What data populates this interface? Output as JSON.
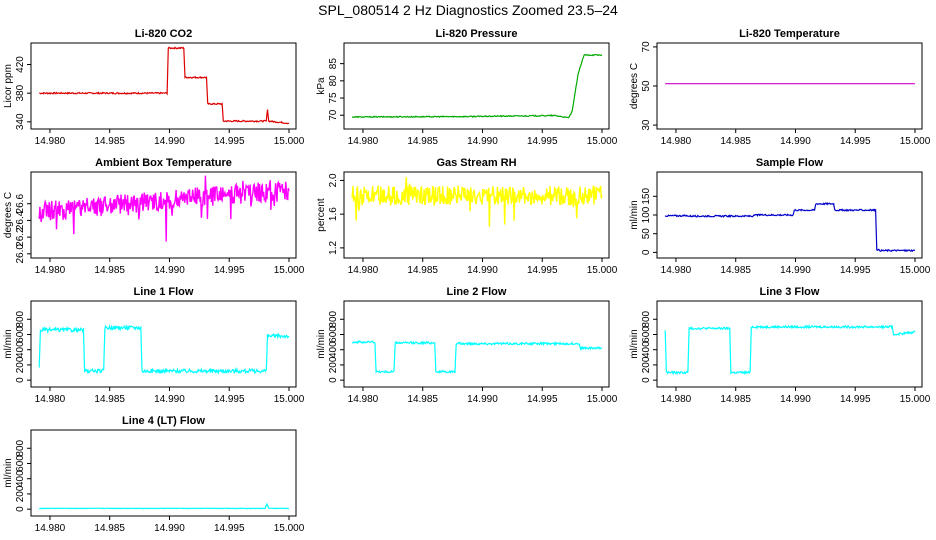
{
  "figure": {
    "title": "SPL_080514  2 Hz Diagnostics Zoomed 23.5–24"
  },
  "chart_data": [
    {
      "type": "line",
      "title": "Li-820 CO2",
      "xlabel": "",
      "ylabel": "Licor ppm",
      "color": "#dd0000",
      "noise": 1,
      "xlim": [
        14.979,
        15.0
      ],
      "ylim": [
        330,
        450
      ],
      "yticks": [
        "340",
        "380",
        "420"
      ],
      "ytick_values": [
        340,
        380,
        420
      ],
      "xticks": [
        "14.980",
        "14.985",
        "14.990",
        "14.995",
        "15.000"
      ],
      "xtick_values": [
        14.98,
        14.985,
        14.99,
        14.995,
        15.0
      ],
      "series": [
        {
          "x": [
            14.9791,
            14.9898,
            14.9899,
            14.9912,
            14.9913,
            14.9922,
            14.9923,
            14.9931,
            14.9932,
            14.9944,
            14.9945,
            14.9981,
            14.9982,
            14.9983,
            15.0
          ],
          "values": [
            380,
            380,
            443,
            443,
            402,
            402,
            402,
            402,
            365,
            365,
            341,
            341,
            358,
            341,
            338
          ]
        }
      ]
    },
    {
      "type": "line",
      "title": "Li-820 Pressure",
      "xlabel": "",
      "ylabel": "kPa",
      "color": "#00aa00",
      "noise": 0.15,
      "xlim": [
        14.979,
        15.0
      ],
      "ylim": [
        66,
        91
      ],
      "yticks": [
        "70",
        "75",
        "80",
        "85"
      ],
      "ytick_values": [
        70,
        75,
        80,
        85
      ],
      "xticks": [
        "14.980",
        "14.985",
        "14.990",
        "14.995",
        "15.000"
      ],
      "xtick_values": [
        14.98,
        14.985,
        14.99,
        14.995,
        15.0
      ],
      "series": [
        {
          "x": [
            14.9791,
            14.988,
            14.996,
            14.9961,
            14.9971,
            14.9972,
            14.9975,
            14.998,
            14.9985,
            15.0
          ],
          "values": [
            69.5,
            69.6,
            69.9,
            69.9,
            69.3,
            69.3,
            71,
            82,
            87.5,
            87.5
          ]
        }
      ]
    },
    {
      "type": "line",
      "title": "Li-820 Temperature",
      "xlabel": "",
      "ylabel": "degrees C",
      "color": "#cc00cc",
      "noise": 0,
      "xlim": [
        14.979,
        15.0
      ],
      "ylim": [
        28,
        72
      ],
      "yticks": [
        "30",
        "50",
        "70"
      ],
      "ytick_values": [
        30,
        50,
        70
      ],
      "xticks": [
        "14.980",
        "14.985",
        "14.990",
        "14.995",
        "15.000"
      ],
      "xtick_values": [
        14.98,
        14.985,
        14.99,
        14.995,
        15.0
      ],
      "series": [
        {
          "x": [
            14.9791,
            15.0
          ],
          "values": [
            51.2,
            51.2
          ]
        }
      ]
    },
    {
      "type": "line",
      "title": "Ambient Box Temperature",
      "xlabel": "",
      "ylabel": "degrees C",
      "color": "#ff00ff",
      "noise": 0.12,
      "spiky": true,
      "xlim": [
        14.979,
        15.0
      ],
      "ylim": [
        25.95,
        26.98
      ],
      "yticks": [
        "26.0",
        "26.2",
        "26.4",
        "26.6"
      ],
      "ytick_values": [
        26.0,
        26.2,
        26.4,
        26.6
      ],
      "xticks": [
        "14.980",
        "14.985",
        "14.990",
        "14.995",
        "15.000"
      ],
      "xtick_values": [
        14.98,
        14.985,
        14.99,
        14.995,
        15.0
      ],
      "series": [
        {
          "x": [
            14.9791,
            14.985,
            14.992,
            15.0
          ],
          "values": [
            26.5,
            26.58,
            26.68,
            26.75
          ]
        }
      ]
    },
    {
      "type": "line",
      "title": "Gas Stream RH",
      "xlabel": "",
      "ylabel": "percent",
      "color": "#ffff00",
      "noise": 0.12,
      "spiky": true,
      "xlim": [
        14.979,
        15.0
      ],
      "ylim": [
        1.08,
        2.1
      ],
      "yticks": [
        "1.2",
        "1.6",
        "2.0"
      ],
      "ytick_values": [
        1.2,
        1.6,
        2.0
      ],
      "xticks": [
        "14.980",
        "14.985",
        "14.990",
        "14.995",
        "15.000"
      ],
      "xtick_values": [
        14.98,
        14.985,
        14.99,
        14.995,
        15.0
      ],
      "series": [
        {
          "x": [
            14.9791,
            15.0
          ],
          "values": [
            1.82,
            1.82
          ]
        }
      ]
    },
    {
      "type": "line",
      "title": "Sample Flow",
      "xlabel": "",
      "ylabel": "ml/min",
      "color": "#0000cc",
      "noise": 2,
      "xlim": [
        14.979,
        15.0
      ],
      "ylim": [
        -15,
        215
      ],
      "yticks": [
        "0",
        "50",
        "100",
        "150"
      ],
      "ytick_values": [
        0,
        50,
        100,
        150
      ],
      "xticks": [
        "14.980",
        "14.985",
        "14.990",
        "14.995",
        "15.000"
      ],
      "xtick_values": [
        14.98,
        14.985,
        14.99,
        14.995,
        15.0
      ],
      "series": [
        {
          "x": [
            14.9791,
            14.981,
            14.9811,
            14.9865,
            14.9866,
            14.9898,
            14.9899,
            14.9916,
            14.9917,
            14.9932,
            14.9933,
            14.9967,
            14.9968,
            14.9971,
            15.0
          ],
          "values": [
            98,
            98,
            97,
            97,
            100,
            100,
            113,
            113,
            130,
            130,
            113,
            113,
            8,
            5,
            5
          ]
        }
      ]
    },
    {
      "type": "line",
      "title": "Line 1 Flow",
      "xlabel": "",
      "ylabel": "ml/min",
      "color": "#00ffff",
      "noise": 25,
      "xlim": [
        14.979,
        15.0
      ],
      "ylim": [
        -90,
        1040
      ],
      "yticks": [
        "0",
        "200",
        "400",
        "600",
        "800"
      ],
      "ytick_values": [
        0,
        200,
        400,
        600,
        800
      ],
      "xticks": [
        "14.980",
        "14.985",
        "14.990",
        "14.995",
        "15.000"
      ],
      "xtick_values": [
        14.98,
        14.985,
        14.99,
        14.995,
        15.0
      ],
      "series": [
        {
          "x": [
            14.9791,
            14.9792,
            14.9828,
            14.9829,
            14.9845,
            14.9846,
            14.9876,
            14.9877,
            14.9981,
            14.9982,
            15.0
          ],
          "values": [
            150,
            660,
            660,
            120,
            120,
            690,
            690,
            120,
            120,
            580,
            580
          ]
        }
      ]
    },
    {
      "type": "line",
      "title": "Line 2 Flow",
      "xlabel": "",
      "ylabel": "ml/min",
      "color": "#00ffff",
      "noise": 14,
      "xlim": [
        14.979,
        15.0
      ],
      "ylim": [
        -90,
        1040
      ],
      "yticks": [
        "0",
        "200",
        "400",
        "600",
        "800"
      ],
      "ytick_values": [
        0,
        200,
        400,
        600,
        800
      ],
      "xticks": [
        "14.980",
        "14.985",
        "14.990",
        "14.995",
        "15.000"
      ],
      "xtick_values": [
        14.98,
        14.985,
        14.99,
        14.995,
        15.0
      ],
      "series": [
        {
          "x": [
            14.9791,
            14.981,
            14.9811,
            14.9826,
            14.9827,
            14.986,
            14.9861,
            14.9877,
            14.9878,
            14.9981,
            14.9982,
            15.0
          ],
          "values": [
            500,
            500,
            110,
            110,
            490,
            490,
            110,
            110,
            480,
            480,
            420,
            420
          ]
        }
      ]
    },
    {
      "type": "line",
      "title": "Line 3 Flow",
      "xlabel": "",
      "ylabel": "ml/min",
      "color": "#00ffff",
      "noise": 14,
      "xlim": [
        14.979,
        15.0
      ],
      "ylim": [
        -90,
        1040
      ],
      "yticks": [
        "0",
        "200",
        "400",
        "600",
        "800"
      ],
      "ytick_values": [
        0,
        200,
        400,
        600,
        800
      ],
      "xticks": [
        "14.980",
        "14.985",
        "14.990",
        "14.995",
        "15.000"
      ],
      "xtick_values": [
        14.98,
        14.985,
        14.99,
        14.995,
        15.0
      ],
      "series": [
        {
          "x": [
            14.9791,
            14.9792,
            14.981,
            14.9811,
            14.9845,
            14.9846,
            14.9862,
            14.9863,
            14.9981,
            14.9982,
            15.0
          ],
          "values": [
            660,
            100,
            100,
            680,
            680,
            100,
            100,
            700,
            700,
            600,
            630
          ]
        }
      ]
    },
    {
      "type": "line",
      "title": "Line 4 (LT) Flow",
      "xlabel": "",
      "ylabel": "ml/min",
      "color": "#00ffff",
      "noise": 3,
      "xlim": [
        14.979,
        15.0
      ],
      "ylim": [
        -90,
        1040
      ],
      "yticks": [
        "0",
        "200",
        "400",
        "600",
        "800"
      ],
      "ytick_values": [
        0,
        200,
        400,
        600,
        800
      ],
      "xticks": [
        "14.980",
        "14.985",
        "14.990",
        "14.995",
        "15.000"
      ],
      "xtick_values": [
        14.98,
        14.985,
        14.99,
        14.995,
        15.0
      ],
      "series": [
        {
          "x": [
            14.9791,
            14.998,
            14.99815,
            14.9983,
            15.0
          ],
          "values": [
            10,
            10,
            70,
            10,
            10
          ]
        }
      ]
    }
  ]
}
